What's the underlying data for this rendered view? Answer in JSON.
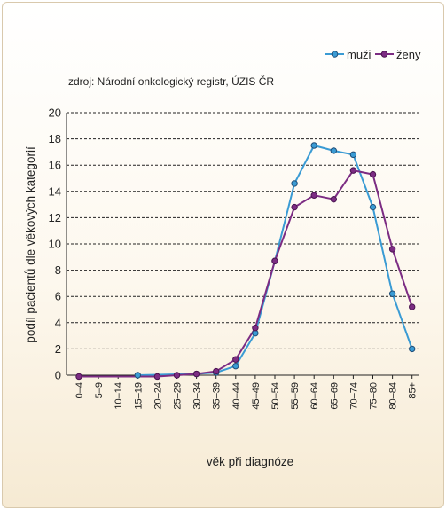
{
  "source_note": "zdroj: Národní onkologický registr, ÚZIS ČR",
  "chart_data": {
    "type": "line",
    "xlabel": "věk při diagnóze",
    "ylabel": "podíl pacientů dle věkových kategorií",
    "ylim": [
      0,
      20
    ],
    "yticks": [
      0,
      2,
      4,
      6,
      8,
      10,
      12,
      14,
      16,
      18,
      20
    ],
    "grid": true,
    "legend_position": "top-right",
    "categories": [
      "0–4",
      "5–9",
      "10–14",
      "15–19",
      "20–24",
      "25–29",
      "30–34",
      "35–39",
      "40–44",
      "45–49",
      "50–54",
      "55–59",
      "60–64",
      "65–69",
      "70–74",
      "75–80",
      "80–84",
      "85+"
    ],
    "series": [
      {
        "name": "muži",
        "color": "#3a9bd4",
        "marker_color": "#3a9bd4",
        "values": [
          null,
          null,
          null,
          0.0,
          null,
          null,
          0.1,
          0.2,
          0.7,
          3.2,
          8.7,
          14.6,
          17.5,
          17.1,
          16.8,
          12.8,
          6.2,
          2.0
        ]
      },
      {
        "name": "ženy",
        "color": "#7c2c83",
        "marker_color": "#7c2c83",
        "values": [
          -0.1,
          null,
          null,
          null,
          -0.1,
          0.0,
          0.1,
          0.3,
          1.2,
          3.6,
          8.7,
          12.8,
          13.7,
          13.4,
          15.6,
          15.3,
          9.6,
          5.2
        ]
      }
    ]
  }
}
